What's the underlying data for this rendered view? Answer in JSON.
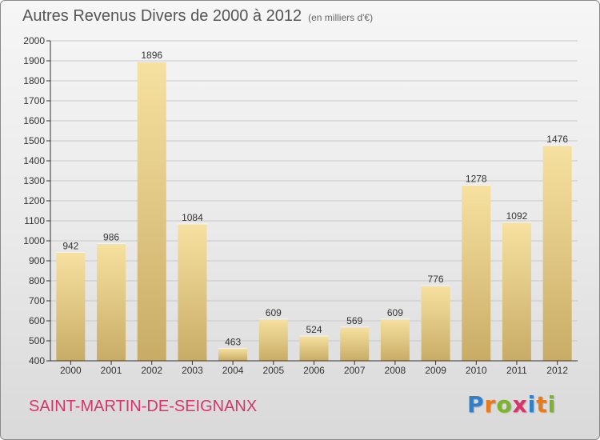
{
  "header": {
    "title": "Autres Revenus Divers de 2000 à 2012",
    "unit": "(en milliers d'€)"
  },
  "footer": {
    "town": "SAINT-MARTIN-DE-SEIGNANX",
    "logo_letters": [
      "P",
      "r",
      "o",
      "x",
      "i",
      "t",
      "i"
    ],
    "logo_colors": [
      "#2f80c8",
      "#e87a1c",
      "#7ab52a",
      "#d6356b",
      "#2f80c8",
      "#e87a1c",
      "#7ab52a"
    ]
  },
  "colors": {
    "bar_light": "#f7e1a0",
    "bar_dark": "#c8ac66",
    "gridline": "#c8c8c8",
    "axis": "#333333",
    "title": "#555555",
    "town": "#d6356b"
  },
  "chart_data": {
    "type": "bar",
    "title": "Autres Revenus Divers de 2000 à 2012",
    "subtitle": "(en milliers d'€)",
    "xlabel": "",
    "ylabel": "",
    "categories": [
      "2000",
      "2001",
      "2002",
      "2003",
      "2004",
      "2005",
      "2006",
      "2007",
      "2008",
      "2009",
      "2010",
      "2011",
      "2012"
    ],
    "values": [
      942,
      986,
      1896,
      1084,
      463,
      609,
      524,
      569,
      609,
      776,
      1278,
      1092,
      1476
    ],
    "ylim": [
      400,
      2000
    ],
    "yticks": [
      400,
      500,
      600,
      700,
      800,
      900,
      1000,
      1100,
      1200,
      1300,
      1400,
      1500,
      1600,
      1700,
      1800,
      1900,
      2000
    ],
    "grid": true,
    "legend": "none"
  }
}
